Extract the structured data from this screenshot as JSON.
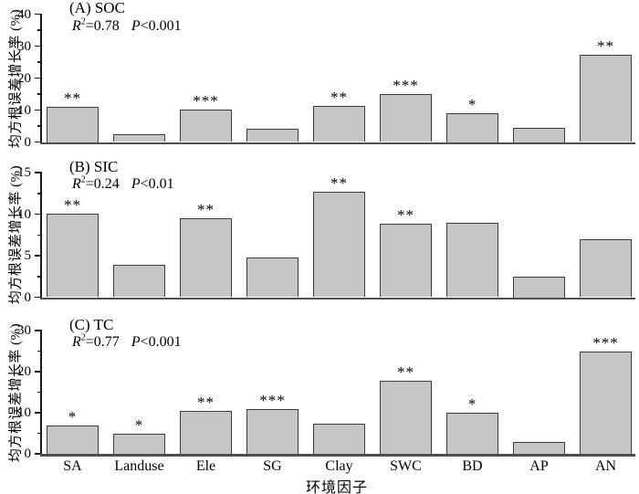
{
  "figure": {
    "xlabel": "环境因子",
    "ylabel": "均方根误差增长率 (%)",
    "categories": [
      "SA",
      "Landuse",
      "Ele",
      "SG",
      "Clay",
      "SWC",
      "BD",
      "AP",
      "AN"
    ],
    "colors": {
      "background": "#ffffff",
      "bar_fill": "#c6c6c6",
      "bar_border": "#3d3d3d",
      "axis_line": "#1c1c1c",
      "baseline": "#4f4f4f",
      "text": "#000000"
    }
  },
  "chart_data": [
    {
      "type": "bar",
      "panel_label": "(A) SOC",
      "stats": {
        "r_label": "R",
        "r_sup": "2",
        "r_value": "=0.78",
        "p_label": "P",
        "p_value": "<0.001"
      },
      "ylim": [
        0,
        40
      ],
      "yticks": [
        0,
        10,
        20,
        30,
        40
      ],
      "yticks_minor": [
        5,
        15,
        25,
        35
      ],
      "categories": [
        "SA",
        "Landuse",
        "Ele",
        "SG",
        "Clay",
        "SWC",
        "BD",
        "AP",
        "AN"
      ],
      "values": [
        11.0,
        2.4,
        10.2,
        4.1,
        11.2,
        15.1,
        9.0,
        4.5,
        27.2
      ],
      "significance": [
        "**",
        "",
        "***",
        "",
        "**",
        "***",
        "*",
        "",
        "**"
      ]
    },
    {
      "type": "bar",
      "panel_label": "(B) SIC",
      "stats": {
        "r_label": "R",
        "r_sup": "2",
        "r_value": "=0.24",
        "p_label": "P",
        "p_value": "<0.01"
      },
      "ylim": [
        0,
        15
      ],
      "yticks": [
        0,
        5,
        10,
        15
      ],
      "yticks_minor": [
        2.5,
        7.5,
        12.5
      ],
      "categories": [
        "SA",
        "Landuse",
        "Ele",
        "SG",
        "Clay",
        "SWC",
        "BD",
        "AP",
        "AN"
      ],
      "values": [
        10.1,
        3.9,
        9.5,
        4.8,
        12.7,
        8.9,
        9.0,
        2.5,
        7.0
      ],
      "significance": [
        "**",
        "",
        "**",
        "",
        "**",
        "**",
        "",
        "",
        ""
      ]
    },
    {
      "type": "bar",
      "panel_label": "(C) TC",
      "stats": {
        "r_label": "R",
        "r_sup": "2",
        "r_value": "=0.77",
        "p_label": "P",
        "p_value": "<0.001"
      },
      "ylim": [
        0,
        30
      ],
      "yticks": [
        0,
        10,
        20,
        30
      ],
      "yticks_minor": [
        5,
        15,
        25
      ],
      "categories": [
        "SA",
        "Landuse",
        "Ele",
        "SG",
        "Clay",
        "SWC",
        "BD",
        "AP",
        "AN"
      ],
      "values": [
        7.0,
        4.8,
        10.4,
        11.0,
        7.3,
        17.7,
        9.9,
        3.0,
        25.0
      ],
      "significance": [
        "*",
        "*",
        "**",
        "***",
        "",
        "**",
        "*",
        "",
        "***"
      ]
    }
  ]
}
